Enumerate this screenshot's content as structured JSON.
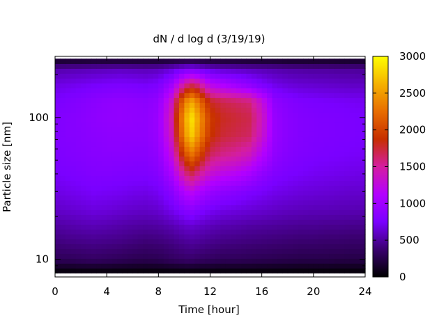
{
  "chart_data": {
    "type": "heatmap",
    "title": "dN / d log d (3/19/19)",
    "xlabel": "Time [hour]",
    "ylabel": "Particle size [nm]",
    "xlim": [
      0,
      24
    ],
    "ylim": [
      7.5,
      270
    ],
    "y_scale": "log",
    "x_ticks": [
      "0",
      "4",
      "8",
      "12",
      "16",
      "20",
      "24"
    ],
    "y_ticks": [
      "10",
      "100"
    ],
    "colorbar": {
      "range": [
        0,
        3000
      ],
      "ticks": [
        "0",
        "500",
        "1000",
        "1500",
        "2000",
        "2500",
        "3000"
      ],
      "colormap": [
        "#000000",
        "#3a006f",
        "#7a00ff",
        "#b300ff",
        "#d41ea0",
        "#c72f00",
        "#e86d00",
        "#f5b200",
        "#ffff00"
      ]
    },
    "grid": false,
    "description_peak": {
      "time_hours": 10.5,
      "size_nm": 100,
      "value": 2900
    },
    "time_hours": [
      0,
      1,
      2,
      3,
      4,
      5,
      6,
      7,
      8,
      9,
      10,
      10.5,
      11,
      12,
      13,
      14,
      15,
      16,
      17,
      18,
      19,
      20,
      21,
      22,
      23,
      24
    ],
    "size_nm": [
      8,
      10,
      13,
      17,
      22,
      30,
      40,
      55,
      75,
      100,
      130,
      170,
      220,
      260
    ],
    "values": [
      [
        0,
        0,
        0,
        0,
        0,
        0,
        0,
        0,
        0,
        0,
        0,
        0,
        0,
        0,
        0,
        0,
        0,
        0,
        0,
        0,
        0,
        0,
        0,
        0,
        0,
        0
      ],
      [
        300,
        300,
        320,
        330,
        320,
        300,
        280,
        270,
        280,
        320,
        350,
        360,
        340,
        320,
        300,
        300,
        290,
        280,
        270,
        260,
        250,
        250,
        250,
        240,
        240,
        240
      ],
      [
        400,
        420,
        430,
        440,
        430,
        420,
        400,
        380,
        390,
        420,
        460,
        480,
        470,
        440,
        420,
        410,
        400,
        390,
        380,
        370,
        360,
        360,
        350,
        350,
        340,
        340
      ],
      [
        500,
        520,
        540,
        550,
        540,
        520,
        500,
        490,
        500,
        540,
        600,
        620,
        600,
        560,
        530,
        520,
        500,
        490,
        480,
        470,
        460,
        460,
        450,
        450,
        440,
        440
      ],
      [
        600,
        620,
        640,
        660,
        650,
        630,
        610,
        600,
        620,
        700,
        800,
        850,
        800,
        720,
        680,
        660,
        640,
        620,
        600,
        580,
        570,
        560,
        560,
        550,
        550,
        540
      ],
      [
        680,
        700,
        720,
        740,
        730,
        720,
        700,
        690,
        720,
        850,
        1100,
        1200,
        1100,
        950,
        880,
        840,
        780,
        740,
        700,
        680,
        660,
        650,
        640,
        630,
        620,
        620
      ],
      [
        740,
        760,
        780,
        800,
        800,
        790,
        780,
        780,
        820,
        1050,
        1500,
        1700,
        1550,
        1300,
        1200,
        1150,
        1050,
        900,
        800,
        760,
        740,
        720,
        710,
        700,
        690,
        680
      ],
      [
        780,
        800,
        820,
        840,
        850,
        850,
        840,
        840,
        900,
        1250,
        2000,
        2300,
        2100,
        1650,
        1550,
        1500,
        1400,
        1150,
        900,
        820,
        790,
        770,
        760,
        750,
        740,
        730
      ],
      [
        800,
        820,
        840,
        860,
        880,
        880,
        880,
        880,
        950,
        1400,
        2400,
        2800,
        2500,
        1900,
        1750,
        1700,
        1650,
        1350,
        950,
        850,
        810,
        790,
        780,
        770,
        760,
        750
      ],
      [
        800,
        820,
        850,
        880,
        900,
        910,
        900,
        890,
        960,
        1450,
        2500,
        2900,
        2600,
        1950,
        1800,
        1750,
        1700,
        1400,
        950,
        850,
        810,
        790,
        780,
        770,
        760,
        750
      ],
      [
        760,
        790,
        820,
        860,
        890,
        900,
        890,
        870,
        920,
        1350,
        2300,
        2600,
        2350,
        1800,
        1700,
        1650,
        1600,
        1300,
        900,
        820,
        780,
        760,
        750,
        740,
        730,
        720
      ],
      [
        680,
        700,
        720,
        740,
        760,
        770,
        760,
        740,
        780,
        1000,
        1500,
        1700,
        1600,
        1200,
        1100,
        1000,
        900,
        780,
        700,
        660,
        640,
        630,
        620,
        610,
        600,
        600
      ],
      [
        540,
        550,
        560,
        570,
        580,
        590,
        580,
        570,
        580,
        650,
        760,
        800,
        760,
        660,
        620,
        600,
        580,
        560,
        540,
        520,
        510,
        500,
        500,
        490,
        490,
        480
      ],
      [
        80,
        90,
        90,
        100,
        100,
        100,
        100,
        100,
        100,
        110,
        120,
        130,
        120,
        110,
        100,
        100,
        90,
        90,
        90,
        80,
        80,
        80,
        80,
        80,
        80,
        80
      ]
    ]
  }
}
